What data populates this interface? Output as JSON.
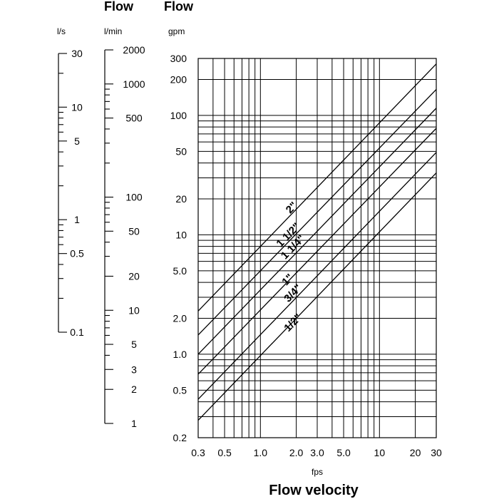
{
  "chart_data": {
    "type": "line",
    "headings": [
      "Flow",
      "Flow"
    ],
    "scale_lps": {
      "unit": "l/s",
      "range": [
        0.1,
        30
      ],
      "tick_labels": [
        {
          "value": 30,
          "label": "30"
        },
        {
          "value": 10,
          "label": "10"
        },
        {
          "value": 5,
          "label": "5"
        },
        {
          "value": 1,
          "label": "1"
        },
        {
          "value": 0.5,
          "label": "0.5"
        },
        {
          "value": 0.1,
          "label": "0.1"
        }
      ]
    },
    "scale_lpm": {
      "unit": "l/min",
      "range": [
        1,
        2000
      ],
      "tick_labels": [
        {
          "value": 2000,
          "label": "2000"
        },
        {
          "value": 1000,
          "label": "1000"
        },
        {
          "value": 500,
          "label": "500"
        },
        {
          "value": 100,
          "label": "100"
        },
        {
          "value": 50,
          "label": "50"
        },
        {
          "value": 20,
          "label": "20"
        },
        {
          "value": 10,
          "label": "10"
        },
        {
          "value": 5,
          "label": "5"
        },
        {
          "value": 3,
          "label": "3"
        },
        {
          "value": 2,
          "label": "2"
        },
        {
          "value": 1,
          "label": "1"
        }
      ]
    },
    "y_axis": {
      "unit": "gpm",
      "scale": "log",
      "range": [
        0.2,
        300
      ],
      "tick_labels": [
        {
          "value": 300,
          "label": "300"
        },
        {
          "value": 200,
          "label": "200"
        },
        {
          "value": 100,
          "label": "100"
        },
        {
          "value": 50,
          "label": "50"
        },
        {
          "value": 20,
          "label": "20"
        },
        {
          "value": 10,
          "label": "10"
        },
        {
          "value": 5,
          "label": "5.0"
        },
        {
          "value": 2,
          "label": "2.0"
        },
        {
          "value": 1,
          "label": "1.0"
        },
        {
          "value": 0.5,
          "label": "0.5"
        },
        {
          "value": 0.2,
          "label": "0.2"
        }
      ]
    },
    "x_axis": {
      "unit": "fps",
      "title": "Flow velocity",
      "scale": "log",
      "range": [
        0.3,
        30
      ],
      "tick_labels": [
        {
          "value": 0.3,
          "label": "0.3"
        },
        {
          "value": 0.5,
          "label": "0.5"
        },
        {
          "value": 1,
          "label": "1.0"
        },
        {
          "value": 2,
          "label": "2.0"
        },
        {
          "value": 3,
          "label": "3.0"
        },
        {
          "value": 5,
          "label": "5.0"
        },
        {
          "value": 10,
          "label": "10"
        },
        {
          "value": 20,
          "label": "20"
        },
        {
          "value": 30,
          "label": "30"
        }
      ]
    },
    "grid": true,
    "series": [
      {
        "name": "2\"",
        "x": [
          0.3,
          30
        ],
        "y": [
          2.3,
          270
        ]
      },
      {
        "name": "1 1/2\"",
        "x": [
          0.3,
          30
        ],
        "y": [
          1.45,
          165
        ]
      },
      {
        "name": "1 1/4\"",
        "x": [
          0.3,
          30
        ],
        "y": [
          1.0,
          115
        ]
      },
      {
        "name": "1\"",
        "x": [
          0.3,
          30
        ],
        "y": [
          0.68,
          78
        ]
      },
      {
        "name": "3/4\"",
        "x": [
          0.3,
          30
        ],
        "y": [
          0.42,
          49
        ]
      },
      {
        "name": "1/2\"",
        "x": [
          0.3,
          30
        ],
        "y": [
          0.28,
          33
        ]
      }
    ]
  }
}
